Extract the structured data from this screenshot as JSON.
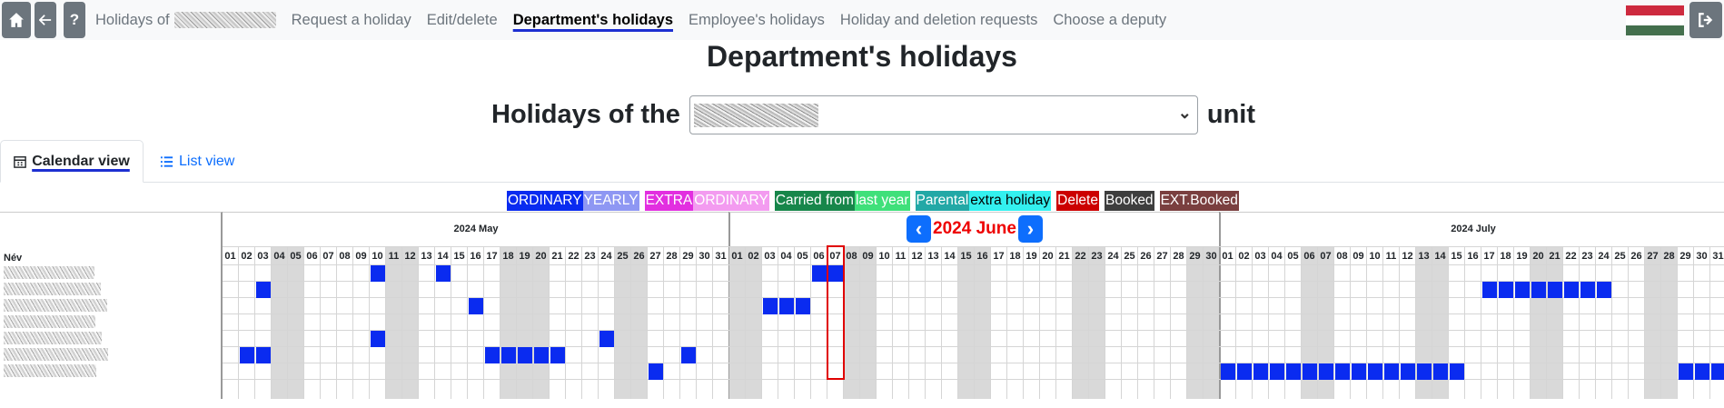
{
  "nav": {
    "home_icon": "home-icon",
    "back_icon": "arrow-left-icon",
    "help_icon": "question-icon",
    "logout_icon": "logout-icon",
    "links": [
      {
        "label": "Holidays of",
        "active": false
      },
      {
        "label": "Request a holiday",
        "active": false
      },
      {
        "label": "Edit/delete",
        "active": false
      },
      {
        "label": "Department's holidays",
        "active": true
      },
      {
        "label": "Employee's holidays",
        "active": false
      },
      {
        "label": "Holiday and deletion requests",
        "active": false
      },
      {
        "label": "Choose a deputy",
        "active": false
      }
    ],
    "flag_colors": [
      "#cd2a3e",
      "#ffffff",
      "#436f4d"
    ]
  },
  "page_title": "Department's holidays",
  "unit_selector": {
    "prefix": "Holidays of the",
    "suffix": "unit"
  },
  "tabs": {
    "calendar": "Calendar view",
    "list": "List view"
  },
  "legend": [
    {
      "parts": [
        {
          "text": "ORDINARY",
          "bg": "#0a2bf0"
        },
        {
          "text": "YEARLY",
          "bg": "#8e97f3"
        }
      ]
    },
    {
      "parts": [
        {
          "text": "EXTRA",
          "bg": "#e22fe0"
        },
        {
          "text": "ORDINARY",
          "bg": "#f39bf0"
        }
      ]
    },
    {
      "parts": [
        {
          "text": "Carried from",
          "bg": "#17864a"
        },
        {
          "text": "last year",
          "bg": "#3fe07a"
        }
      ]
    },
    {
      "parts": [
        {
          "text": "Parental",
          "bg": "#22a8a6"
        },
        {
          "text": "extra holiday",
          "bg": "#33f0ef",
          "dark": true
        }
      ]
    },
    {
      "parts": [
        {
          "text": "Delete",
          "bg": "#cc0000"
        }
      ]
    },
    {
      "parts": [
        {
          "text": "Booked",
          "bg": "#3e3e3e"
        }
      ]
    },
    {
      "parts": [
        {
          "text": "EXT.Booked",
          "bg": "#7a3f3f"
        }
      ]
    }
  ],
  "calendar": {
    "name_header": "Név",
    "today": {
      "month": 1,
      "day": 7
    },
    "months": [
      {
        "label": "2024 May",
        "days": 31,
        "weekends": [
          4,
          5,
          11,
          12,
          18,
          19,
          20,
          25,
          26
        ]
      },
      {
        "label": "2024 June",
        "days": 30,
        "weekends": [
          1,
          2,
          8,
          9,
          15,
          16,
          22,
          23,
          29,
          30
        ]
      },
      {
        "label": "2024 July",
        "days": 31,
        "weekends": [
          6,
          7,
          13,
          14,
          20,
          21,
          27,
          28
        ]
      }
    ],
    "rows": [
      {
        "booked": {
          "0": [
            10,
            14
          ],
          "1": [
            6,
            7
          ]
        }
      },
      {
        "booked": {
          "0": [
            3
          ],
          "2": [
            17,
            18,
            19,
            20,
            21,
            22,
            23,
            24
          ]
        }
      },
      {
        "booked": {
          "0": [
            16
          ],
          "1": [
            3,
            4,
            5
          ]
        }
      },
      {
        "booked": {}
      },
      {
        "booked": {
          "0": [
            10,
            24
          ]
        }
      },
      {
        "booked": {
          "0": [
            2,
            3,
            17,
            18,
            19,
            20,
            21,
            29
          ]
        }
      },
      {
        "booked": {
          "0": [
            27
          ],
          "2": [
            1,
            2,
            3,
            4,
            5,
            6,
            7,
            8,
            9,
            10,
            11,
            12,
            13,
            14,
            15,
            29,
            30,
            31
          ]
        }
      }
    ],
    "booked_color": "#0a2bf0",
    "today_color": "#e00000"
  }
}
